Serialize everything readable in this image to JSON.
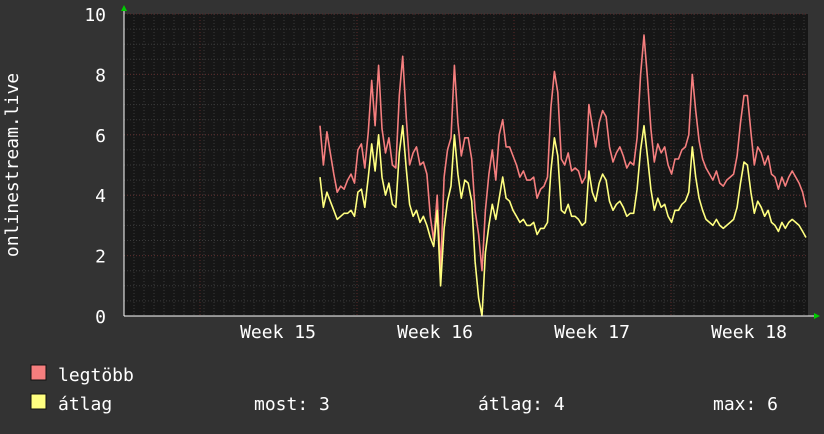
{
  "chart_data": {
    "type": "line",
    "ylabel": "onlinestream.live",
    "ylim": [
      0,
      10
    ],
    "y_ticks": [
      "0",
      "2",
      "4",
      "6",
      "8",
      "10"
    ],
    "x_ticks": [
      "Week 15",
      "Week 16",
      "Week 17",
      "Week 18"
    ],
    "grid": true,
    "legend_position": "bottom-left",
    "colors": {
      "background": "#333333",
      "plot_background": "#161616",
      "axis_text": "#FFFFFF",
      "minor_grid": "#3A3A3A",
      "major_grid": "#5A2A2A",
      "axis_arrow": "#00CC00"
    },
    "series": [
      {
        "name": "legtöbb",
        "color": "#F57E7E",
        "values": [
          6.3,
          5.0,
          6.1,
          5.4,
          4.7,
          4.1,
          4.3,
          4.2,
          4.5,
          4.7,
          4.4,
          5.5,
          5.7,
          4.9,
          6.1,
          7.8,
          6.3,
          8.3,
          6.2,
          5.4,
          5.9,
          5.0,
          4.9,
          7.3,
          8.6,
          6.6,
          5.0,
          5.4,
          5.6,
          5.0,
          5.1,
          4.7,
          3.3,
          2.5,
          4.0,
          1.5,
          4.6,
          5.5,
          5.9,
          8.3,
          6.4,
          5.3,
          5.9,
          5.9,
          5.2,
          3.5,
          2.7,
          1.5,
          3.5,
          4.7,
          5.5,
          4.5,
          6.0,
          6.5,
          5.6,
          5.6,
          5.3,
          5.0,
          4.6,
          4.8,
          4.5,
          4.5,
          4.6,
          3.9,
          4.2,
          4.3,
          4.6,
          6.9,
          8.1,
          7.4,
          5.2,
          5.0,
          5.4,
          4.8,
          4.9,
          4.8,
          4.4,
          4.6,
          7.0,
          6.3,
          5.6,
          6.4,
          6.8,
          6.6,
          5.6,
          5.1,
          5.4,
          5.6,
          5.3,
          4.9,
          5.1,
          5.0,
          5.9,
          8.0,
          9.3,
          7.9,
          6.2,
          5.1,
          5.7,
          5.4,
          5.6,
          5.0,
          4.7,
          5.2,
          5.2,
          5.5,
          5.6,
          6.0,
          8.0,
          6.8,
          5.8,
          5.2,
          4.9,
          4.7,
          4.5,
          4.8,
          4.4,
          4.3,
          4.5,
          4.6,
          4.7,
          5.3,
          6.4,
          7.3,
          7.3,
          6.1,
          5.0,
          5.6,
          5.4,
          5.0,
          5.3,
          4.7,
          4.6,
          4.2,
          4.6,
          4.3,
          4.6,
          4.8,
          4.6,
          4.4,
          4.1,
          3.6
        ]
      },
      {
        "name": "átlag",
        "color": "#FFFF80",
        "values": [
          4.6,
          3.6,
          4.1,
          3.8,
          3.5,
          3.2,
          3.3,
          3.4,
          3.4,
          3.5,
          3.3,
          4.1,
          4.2,
          3.6,
          4.6,
          5.7,
          4.8,
          6.0,
          4.6,
          4.0,
          4.4,
          3.7,
          3.6,
          5.4,
          6.3,
          4.9,
          3.7,
          3.3,
          3.5,
          3.1,
          3.3,
          3.0,
          2.6,
          2.3,
          3.5,
          1.0,
          2.9,
          3.8,
          4.3,
          6.0,
          4.7,
          3.9,
          4.5,
          4.4,
          3.8,
          1.8,
          0.6,
          0.0,
          2.1,
          3.0,
          3.7,
          3.2,
          3.9,
          4.6,
          3.9,
          3.8,
          3.5,
          3.3,
          3.1,
          3.2,
          3.0,
          3.0,
          3.1,
          2.7,
          2.9,
          2.9,
          3.1,
          4.8,
          5.9,
          5.3,
          3.5,
          3.4,
          3.7,
          3.3,
          3.3,
          3.2,
          3.0,
          3.1,
          4.8,
          4.1,
          3.8,
          4.4,
          4.7,
          4.5,
          3.8,
          3.5,
          3.7,
          3.8,
          3.6,
          3.3,
          3.4,
          3.4,
          4.2,
          5.5,
          6.3,
          5.3,
          4.2,
          3.5,
          3.9,
          3.6,
          3.7,
          3.3,
          3.1,
          3.5,
          3.5,
          3.7,
          3.8,
          4.1,
          5.6,
          4.6,
          3.9,
          3.5,
          3.2,
          3.1,
          3.0,
          3.2,
          3.0,
          2.9,
          3.0,
          3.1,
          3.2,
          3.6,
          4.4,
          5.1,
          5.0,
          4.1,
          3.4,
          3.8,
          3.6,
          3.3,
          3.5,
          3.1,
          3.0,
          2.8,
          3.1,
          2.9,
          3.1,
          3.2,
          3.1,
          3.0,
          2.8,
          2.6
        ]
      }
    ],
    "stats": {
      "most_label": "most: 3",
      "atlag_label": "átlag: 4",
      "max_label": "max: 6"
    }
  }
}
